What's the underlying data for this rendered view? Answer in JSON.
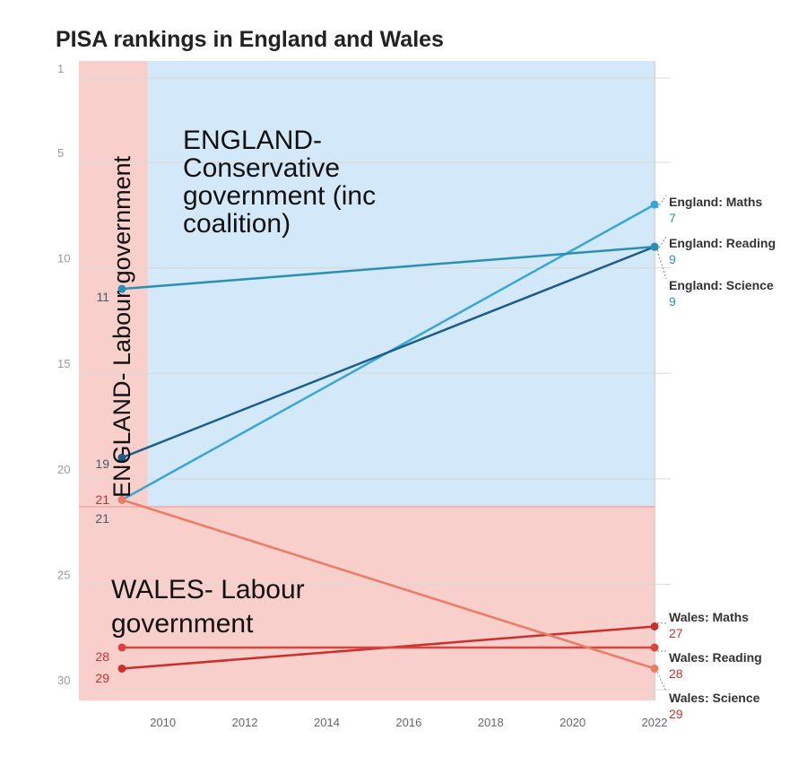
{
  "title": "PISA rankings in England and Wales",
  "chart_data": {
    "type": "line",
    "title": "PISA rankings in England and Wales",
    "ylim": [
      1,
      30
    ],
    "y_reversed": true,
    "yticks": [
      1,
      5,
      10,
      15,
      20,
      25,
      30
    ],
    "xlim": [
      2009,
      2022
    ],
    "xticks": [
      2010,
      2012,
      2014,
      2016,
      2018,
      2020,
      2022
    ],
    "grid": true,
    "series": [
      {
        "name": "England: Maths",
        "x": [
          2009,
          2022
        ],
        "y": [
          21,
          7
        ],
        "start_label": "21",
        "end_label": "7",
        "color": "#3aa6d4"
      },
      {
        "name": "England: Reading",
        "x": [
          2009,
          2022
        ],
        "y": [
          19,
          9
        ],
        "start_label": "19",
        "end_label": "9",
        "color": "#1a5f8c"
      },
      {
        "name": "England: Science",
        "x": [
          2009,
          2022
        ],
        "y": [
          11,
          9
        ],
        "start_label": "11",
        "end_label": "9",
        "color": "#2b8fb3"
      },
      {
        "name": "Wales: Maths",
        "x": [
          2009,
          2022
        ],
        "y": [
          29,
          27
        ],
        "start_label": "29",
        "end_label": "27",
        "color": "#c9302c"
      },
      {
        "name": "Wales: Reading",
        "x": [
          2009,
          2022
        ],
        "y": [
          28,
          28
        ],
        "start_label": "28",
        "end_label": "28",
        "color": "#d9433d"
      },
      {
        "name": "Wales: Science",
        "x": [
          2009,
          2022
        ],
        "y": [
          21,
          29
        ],
        "start_label": "21",
        "end_label": "29",
        "color": "#ec7a64"
      }
    ],
    "annotations": {
      "england_labour": "ENGLAND- Labour government",
      "england_conservative": [
        "ENGLAND-",
        "Conservative",
        "government (inc",
        "coalition)"
      ],
      "wales_labour": [
        "WALES- Labour",
        "government"
      ]
    },
    "colors": {
      "labour": "#f8cfcb",
      "conservative": "#d3e8f8"
    }
  }
}
